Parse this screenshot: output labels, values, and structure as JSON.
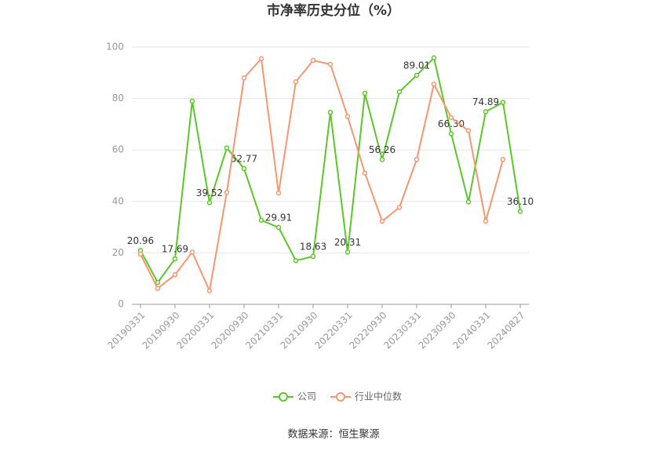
{
  "chart_data": {
    "type": "line",
    "title": "市净率历史分位（%）",
    "categories": [
      "20190331",
      null,
      "20190930",
      null,
      "20200331",
      null,
      "20200930",
      null,
      "20210331",
      null,
      "20210930",
      null,
      "20220331",
      null,
      "20220930",
      null,
      "20230331",
      null,
      "20230930",
      null,
      "20240331",
      null,
      "20240827"
    ],
    "series": [
      {
        "name": "公司",
        "color": "#5cc52a",
        "values": [
          20.96,
          8.5,
          17.69,
          79,
          39.52,
          60.8,
          52.77,
          32.7,
          29.91,
          17,
          18.63,
          74.6,
          20.31,
          82,
          56.26,
          82.6,
          89.01,
          95.8,
          66.3,
          39.8,
          74.89,
          78.5,
          36.1
        ],
        "value_labels": [
          "20.96",
          null,
          "17.69",
          null,
          "39.52",
          null,
          "52.77",
          null,
          "29.91",
          null,
          "18.63",
          null,
          "20.31",
          null,
          "56.26",
          null,
          "89.01",
          null,
          "66.30",
          null,
          "74.89",
          null,
          "36.10"
        ]
      },
      {
        "name": "行业中位数",
        "color": "#f5976e",
        "values": [
          19.5,
          6.2,
          11.5,
          20.3,
          5.3,
          43.5,
          88,
          95.5,
          43.3,
          86.5,
          94.8,
          93.3,
          73,
          51,
          32.3,
          37.7,
          56.3,
          85.6,
          72.6,
          67.5,
          32.3,
          56.3,
          null
        ]
      }
    ],
    "ylim": [
      0,
      100
    ],
    "yticks": [
      0,
      20,
      40,
      60,
      80,
      100
    ],
    "grid": true,
    "legend": "bottom",
    "source": "数据来源：恒生聚源"
  }
}
